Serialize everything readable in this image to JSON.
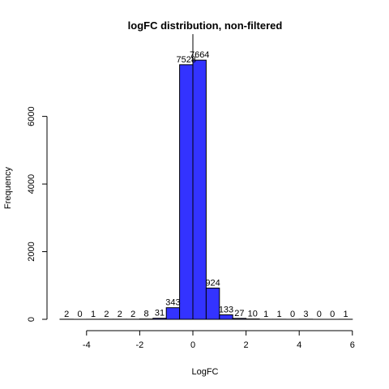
{
  "chart_data": {
    "type": "bar",
    "title": "logFC distribution, non-filtered",
    "xlabel": "LogFC",
    "ylabel": "Frequency",
    "bin_width": 0.5,
    "bins": [
      {
        "start": -5.0,
        "end": -4.5,
        "count": 2
      },
      {
        "start": -4.5,
        "end": -4.0,
        "count": 0
      },
      {
        "start": -4.0,
        "end": -3.5,
        "count": 1
      },
      {
        "start": -3.5,
        "end": -3.0,
        "count": 2
      },
      {
        "start": -3.0,
        "end": -2.5,
        "count": 2
      },
      {
        "start": -2.5,
        "end": -2.0,
        "count": 2
      },
      {
        "start": -2.0,
        "end": -1.5,
        "count": 8
      },
      {
        "start": -1.5,
        "end": -1.0,
        "count": 31
      },
      {
        "start": -1.0,
        "end": -0.5,
        "count": 343
      },
      {
        "start": -0.5,
        "end": 0.0,
        "count": 7528
      },
      {
        "start": 0.0,
        "end": 0.5,
        "count": 7664
      },
      {
        "start": 0.5,
        "end": 1.0,
        "count": 924
      },
      {
        "start": 1.0,
        "end": 1.5,
        "count": 133
      },
      {
        "start": 1.5,
        "end": 2.0,
        "count": 27
      },
      {
        "start": 2.0,
        "end": 2.5,
        "count": 10
      },
      {
        "start": 2.5,
        "end": 3.0,
        "count": 1
      },
      {
        "start": 3.0,
        "end": 3.5,
        "count": 1
      },
      {
        "start": 3.5,
        "end": 4.0,
        "count": 0
      },
      {
        "start": 4.0,
        "end": 4.5,
        "count": 3
      },
      {
        "start": 4.5,
        "end": 5.0,
        "count": 0
      },
      {
        "start": 5.0,
        "end": 5.5,
        "count": 0
      },
      {
        "start": 5.5,
        "end": 6.0,
        "count": 1
      }
    ],
    "x_ticks": [
      -4,
      -2,
      0,
      2,
      4,
      6
    ],
    "y_ticks": [
      0,
      2000,
      4000,
      6000
    ],
    "xlim": [
      -5,
      6
    ],
    "ylim": [
      0,
      8000
    ],
    "bar_color": "#3333ff",
    "bar_edge_color": "#000000",
    "vertical_line_at": 0,
    "grid": false
  }
}
